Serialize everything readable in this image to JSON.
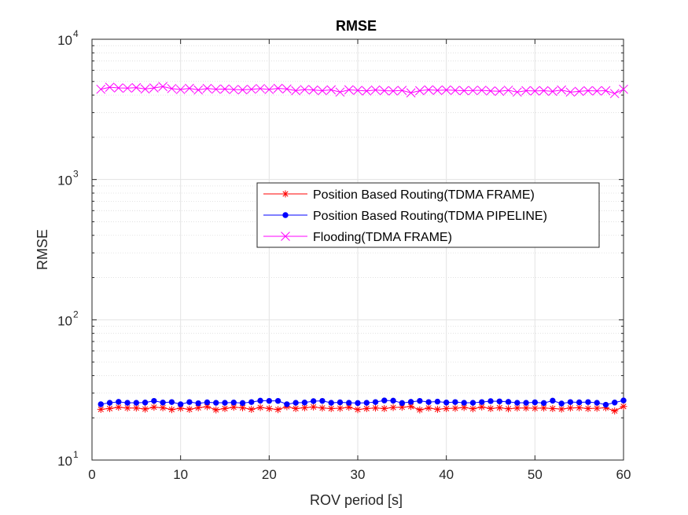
{
  "chart_data": {
    "type": "line",
    "title": "RMSE",
    "xlabel": "ROV period [s]",
    "ylabel": "RMSE",
    "xlim": [
      0,
      60
    ],
    "ylim": [
      10,
      10000
    ],
    "yscale": "log",
    "grid": true,
    "minor_grid": true,
    "legend_position": "center-right",
    "x_ticks": [
      0,
      10,
      20,
      30,
      40,
      50,
      60
    ],
    "x_tick_labels": [
      "0",
      "10",
      "20",
      "30",
      "40",
      "50",
      "60"
    ],
    "y_ticks": [
      {
        "value": 10,
        "base": "10",
        "exp": "1"
      },
      {
        "value": 100,
        "base": "10",
        "exp": "2"
      },
      {
        "value": 1000,
        "base": "10",
        "exp": "3"
      },
      {
        "value": 10000,
        "base": "10",
        "exp": "4"
      }
    ],
    "x": [
      1,
      2,
      3,
      4,
      5,
      6,
      7,
      8,
      9,
      10,
      11,
      12,
      13,
      14,
      15,
      16,
      17,
      18,
      19,
      20,
      21,
      22,
      23,
      24,
      25,
      26,
      27,
      28,
      29,
      30,
      31,
      32,
      33,
      34,
      35,
      36,
      37,
      38,
      39,
      40,
      41,
      42,
      43,
      44,
      45,
      46,
      47,
      48,
      49,
      50,
      51,
      52,
      53,
      54,
      55,
      56,
      57,
      58,
      59,
      60
    ],
    "series": [
      {
        "name": "Position Based Routing(TDMA FRAME)",
        "color": "#ff0000",
        "marker": "asterisk",
        "values": [
          23.0,
          23.3,
          23.8,
          23.5,
          23.5,
          23.1,
          23.8,
          23.6,
          22.9,
          23.4,
          23.0,
          23.6,
          24.0,
          22.8,
          23.3,
          23.8,
          23.6,
          23.0,
          23.7,
          23.3,
          22.9,
          24.0,
          23.3,
          23.6,
          23.9,
          23.5,
          23.3,
          23.4,
          23.8,
          22.9,
          23.3,
          23.5,
          23.3,
          23.7,
          23.8,
          24.1,
          22.8,
          23.5,
          23.0,
          23.3,
          23.4,
          23.7,
          23.2,
          23.9,
          23.3,
          23.6,
          23.2,
          23.5,
          23.5,
          23.4,
          23.5,
          23.3,
          23.1,
          23.5,
          23.6,
          23.3,
          23.4,
          23.6,
          22.4,
          24.1
        ]
      },
      {
        "name": "Position Based Routing(TDMA PIPELINE)",
        "color": "#0000ff",
        "marker": "dot",
        "values": [
          25.0,
          25.6,
          26.0,
          25.6,
          25.6,
          25.7,
          26.4,
          25.7,
          25.9,
          25.0,
          25.9,
          25.4,
          25.8,
          25.6,
          25.6,
          25.7,
          25.5,
          25.9,
          26.5,
          26.4,
          26.4,
          25.0,
          25.6,
          25.7,
          26.3,
          26.4,
          25.6,
          25.8,
          25.6,
          25.5,
          25.6,
          25.9,
          26.6,
          26.5,
          25.5,
          26.0,
          26.4,
          25.9,
          26.1,
          25.7,
          25.9,
          25.6,
          25.6,
          25.9,
          26.3,
          26.2,
          26.0,
          25.6,
          25.6,
          25.8,
          25.5,
          26.5,
          25.3,
          25.9,
          25.8,
          25.9,
          25.6,
          24.8,
          25.7,
          26.6
        ]
      },
      {
        "name": "Flooding(TDMA FRAME)",
        "color": "#ff00ff",
        "marker": "x",
        "values": [
          4400,
          4550,
          4500,
          4480,
          4520,
          4420,
          4500,
          4600,
          4450,
          4380,
          4470,
          4350,
          4460,
          4400,
          4420,
          4380,
          4360,
          4400,
          4450,
          4380,
          4470,
          4420,
          4300,
          4380,
          4350,
          4300,
          4360,
          4200,
          4360,
          4320,
          4280,
          4350,
          4300,
          4280,
          4320,
          4150,
          4300,
          4360,
          4320,
          4350,
          4320,
          4300,
          4310,
          4330,
          4280,
          4260,
          4330,
          4200,
          4300,
          4280,
          4300,
          4250,
          4350,
          4200,
          4250,
          4300,
          4280,
          4300,
          4100,
          4400
        ]
      }
    ]
  }
}
